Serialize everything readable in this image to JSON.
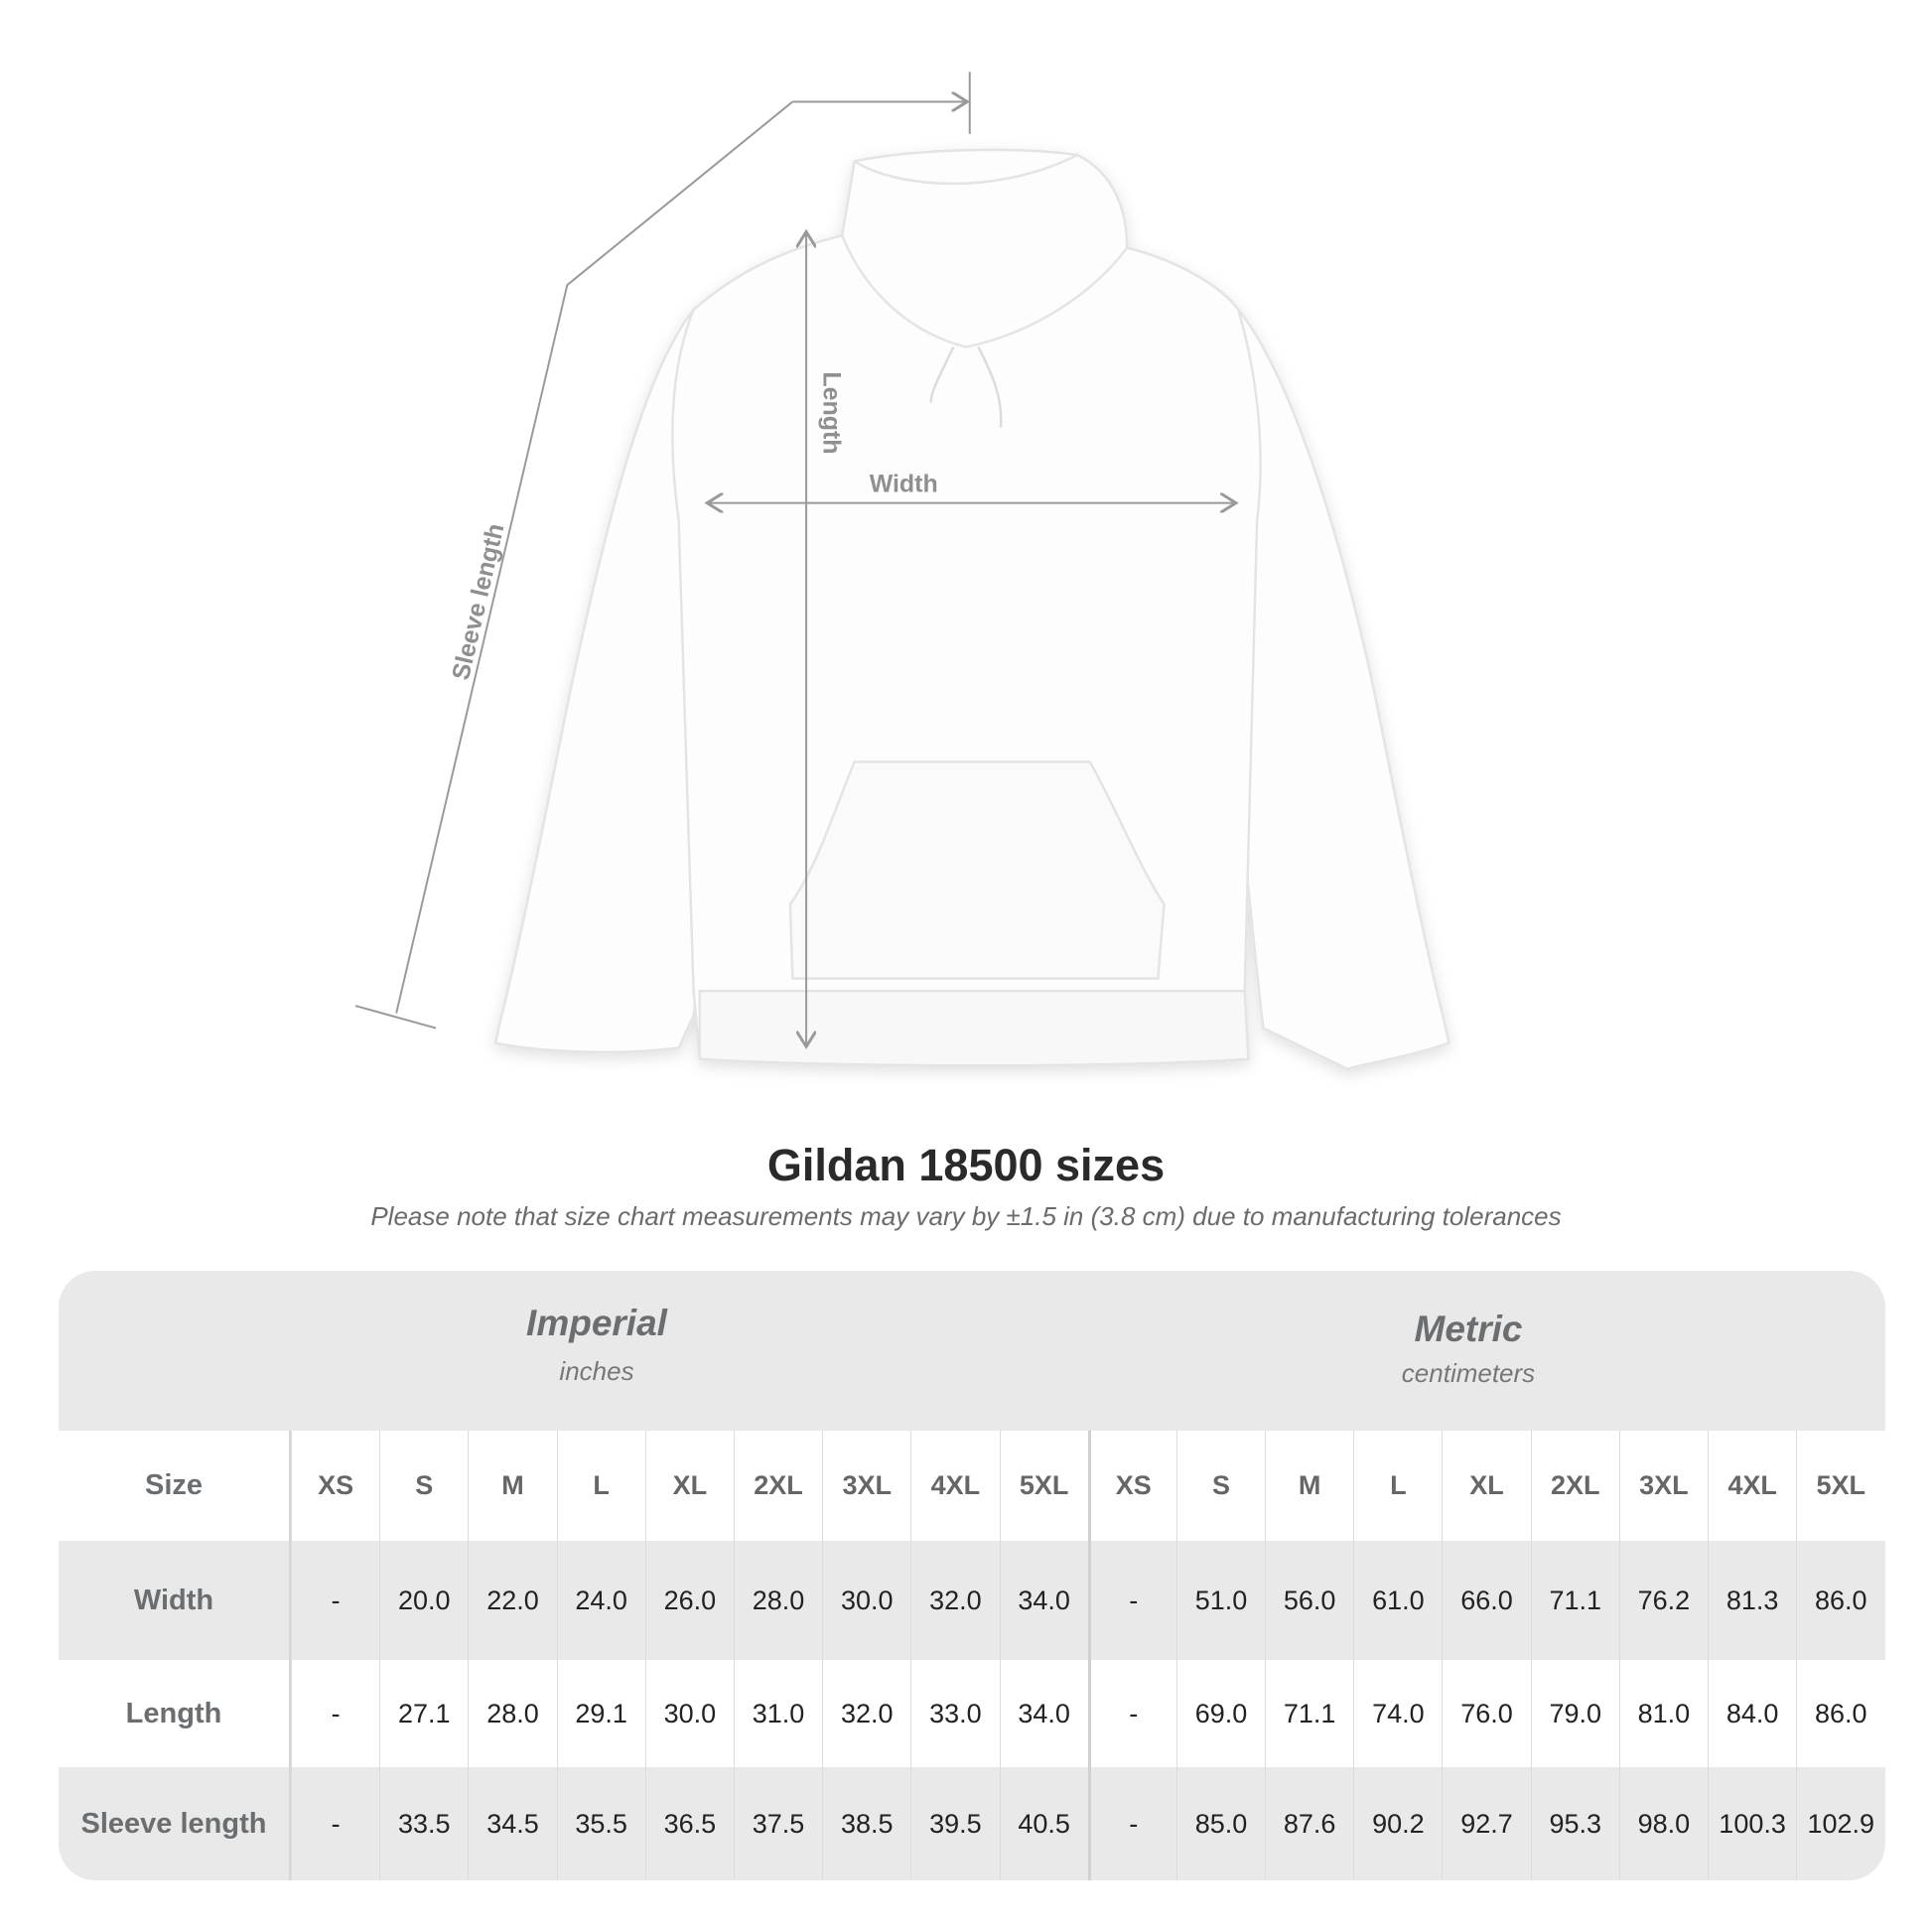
{
  "diagram": {
    "labels": {
      "sleeve": "Sleeve length",
      "length": "Length",
      "width": "Width"
    },
    "line_color": "#9a9a9a"
  },
  "header": {
    "title": "Gildan 18500 sizes",
    "note": "Please note that size chart measurements may vary by ±1.5 in (3.8 cm) due to manufacturing tolerances"
  },
  "table": {
    "imperial": {
      "name": "Imperial",
      "unit": "inches"
    },
    "metric": {
      "name": "Metric",
      "unit": "centimeters"
    },
    "size_label": "Size",
    "sizes": [
      "XS",
      "S",
      "M",
      "L",
      "XL",
      "2XL",
      "3XL",
      "4XL",
      "5XL"
    ],
    "rows": [
      {
        "label": "Width",
        "imperial": [
          "-",
          "20.0",
          "22.0",
          "24.0",
          "26.0",
          "28.0",
          "30.0",
          "32.0",
          "34.0"
        ],
        "metric": [
          "-",
          "51.0",
          "56.0",
          "61.0",
          "66.0",
          "71.1",
          "76.2",
          "81.3",
          "86.0"
        ]
      },
      {
        "label": "Length",
        "imperial": [
          "-",
          "27.1",
          "28.0",
          "29.1",
          "30.0",
          "31.0",
          "32.0",
          "33.0",
          "34.0"
        ],
        "metric": [
          "-",
          "69.0",
          "71.1",
          "74.0",
          "76.0",
          "79.0",
          "81.0",
          "84.0",
          "86.0"
        ]
      },
      {
        "label": "Sleeve length",
        "imperial": [
          "-",
          "33.5",
          "34.5",
          "35.5",
          "36.5",
          "37.5",
          "38.5",
          "39.5",
          "40.5"
        ],
        "metric": [
          "-",
          "85.0",
          "87.6",
          "90.2",
          "92.7",
          "95.3",
          "98.0",
          "100.3",
          "102.9"
        ]
      }
    ]
  }
}
